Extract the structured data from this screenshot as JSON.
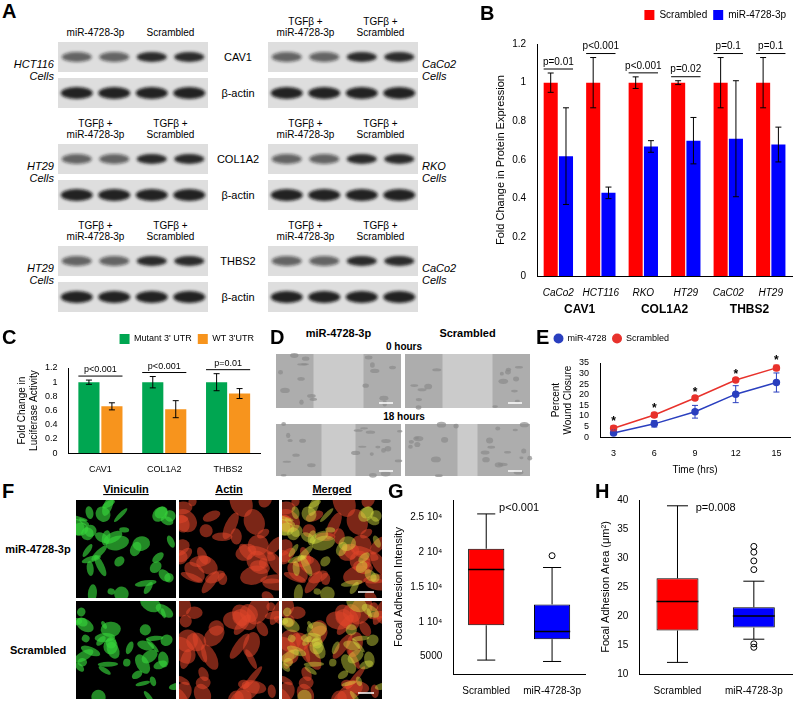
{
  "blots": {
    "panel": "A",
    "rows": [
      {
        "protein": "CAV1",
        "loading_control": "β-actin",
        "blots": [
          {
            "cell": "HCT116 Cells",
            "lanes": [
              "miR-4728-3p",
              "Scrambled"
            ]
          },
          {
            "cell": "CaCo2 Cells",
            "lanes": [
              "TGFβ + miR-4728-3p",
              "TGFβ + Scrambled"
            ]
          }
        ]
      },
      {
        "protein": "COL1A2",
        "loading_control": "β-actin",
        "blots": [
          {
            "cell": "HT29 Cells",
            "lanes": [
              "TGFβ + miR-4728-3p",
              "TGFβ + Scrambled"
            ]
          },
          {
            "cell": "RKO Cells",
            "lanes": [
              "TGFβ + miR-4728-3p",
              "TGFβ + Scrambled"
            ]
          }
        ]
      },
      {
        "protein": "THBS2",
        "loading_control": "β-actin",
        "blots": [
          {
            "cell": "HT29 Cells",
            "lanes": [
              "TGFβ + miR-4728-3p",
              "TGFβ + Scrambled"
            ]
          },
          {
            "cell": "CaCo2 Cells",
            "lanes": [
              "TGFβ + miR-4728-3p",
              "TGFβ + Scrambled"
            ]
          }
        ]
      }
    ]
  },
  "wound_images": {
    "panel": "D",
    "columns": [
      "miR-4728-3p",
      "Scrambled"
    ],
    "rows": [
      "0 hours",
      "18 hours"
    ]
  },
  "immunofluorescence": {
    "panel": "F",
    "columns": [
      "Viniculin",
      "Actin",
      "Merged"
    ],
    "rows": [
      "miR-4728-3p",
      "Scrambled"
    ]
  },
  "chart_data": [
    {
      "panel": "B",
      "type": "bar",
      "categories": [
        "CaCo2",
        "HCT116",
        "RKO",
        "HT29",
        "CaC02",
        "HT29"
      ],
      "groups": [
        "CAV1",
        "CAV1",
        "COL1A2",
        "COL1A2",
        "THBS2",
        "THBS2"
      ],
      "series": [
        {
          "name": "Scrambled",
          "color": "#ff0000",
          "values": [
            1,
            1,
            1,
            1,
            1,
            1
          ],
          "errors": [
            0.05,
            0.13,
            0.03,
            0.01,
            0.13,
            0.13
          ]
        },
        {
          "name": "miR-4728-3p",
          "color": "#0000ff",
          "values": [
            0.62,
            0.43,
            0.67,
            0.7,
            0.71,
            0.68
          ],
          "errors": [
            0.25,
            0.03,
            0.03,
            0.12,
            0.3,
            0.09
          ]
        }
      ],
      "annotations": [
        "p=0.01",
        "p<0.001",
        "p<0.001",
        "p=0.02",
        "p=0.1",
        "p=0.1"
      ],
      "y_label": "Fold Change in Protein Expression",
      "ylim": [
        0,
        1.2
      ],
      "yticks": [
        0,
        0.2,
        0.4,
        0.6,
        0.8,
        1,
        1.2
      ],
      "legend": "top-right",
      "grid": false
    },
    {
      "panel": "C",
      "type": "bar",
      "categories": [
        "CAV1",
        "COL1A2",
        "THBS2"
      ],
      "series": [
        {
          "name": "Mutant 3' UTR",
          "color": "#00a651",
          "values": [
            1,
            1,
            1
          ],
          "errors": [
            0.03,
            0.08,
            0.12
          ]
        },
        {
          "name": "WT 3'UTR",
          "color": "#f7941d",
          "values": [
            0.66,
            0.62,
            0.84
          ],
          "errors": [
            0.05,
            0.12,
            0.07
          ]
        }
      ],
      "annotations": [
        "p<0.001",
        "p<0.001",
        "p=0.01"
      ],
      "y_label": "Fold Change in Luciferase Activity",
      "ylim": [
        0,
        1.2
      ],
      "yticks": [
        0,
        0.2,
        0.4,
        0.6,
        0.8,
        1,
        1.2
      ],
      "legend": "top-right",
      "grid": false
    },
    {
      "panel": "E",
      "type": "line",
      "x": [
        3,
        6,
        9,
        12,
        15
      ],
      "series": [
        {
          "name": "miR-4728",
          "color": "#2a3fbf",
          "marker": "circle",
          "values": [
            2,
            6.3,
            12,
            20.3,
            25.8
          ],
          "errors": [
            0.8,
            1.5,
            3,
            4,
            4.5
          ]
        },
        {
          "name": "Scrambled",
          "color": "#e8322c",
          "marker": "circle",
          "values": [
            4.2,
            10.5,
            18.5,
            27,
            32.7
          ],
          "errors": [
            1.2,
            1.2,
            0.8,
            0.8,
            1.3
          ]
        }
      ],
      "annotations": [
        {
          "x": 3,
          "text": "*"
        },
        {
          "x": 6,
          "text": "*"
        },
        {
          "x": 9,
          "text": "*"
        },
        {
          "x": 12,
          "text": "*"
        },
        {
          "x": 15,
          "text": "*"
        }
      ],
      "x_label": "Time (hrs)",
      "y_label": "Percent Wound Closure",
      "xlim": [
        2,
        16
      ],
      "xticks": [
        3,
        6,
        9,
        12,
        15
      ],
      "ylim": [
        0,
        35
      ],
      "yticks": [
        0,
        5,
        10,
        15,
        20,
        25,
        30,
        35
      ],
      "legend": "top-left",
      "grid": false
    },
    {
      "panel": "G",
      "type": "box",
      "categories": [
        "Scrambled",
        "miR-4728-3p"
      ],
      "colors": [
        "#ff0000",
        "#0000ff"
      ],
      "boxes": [
        {
          "min": 4500,
          "q1": 9500,
          "median": 17500,
          "q3": 20500,
          "max": 25500,
          "outliers": []
        },
        {
          "min": 4300,
          "q1": 7500,
          "median": 8600,
          "q3": 12500,
          "max": 17800,
          "outliers": [
            19500
          ]
        }
      ],
      "annotation": "p<0.001",
      "y_label": "Focal Adhesion Intensity",
      "ylim": [
        2500,
        27500
      ],
      "yticks": [
        5000,
        {
          "value": 10000,
          "label": "1 10⁴"
        },
        {
          "value": 15000,
          "label": "1.5 10⁴"
        },
        {
          "value": 20000,
          "label": "2 10⁴"
        },
        {
          "value": 25000,
          "label": "2.5 10⁴"
        }
      ],
      "grid": false
    },
    {
      "panel": "H",
      "type": "box",
      "categories": [
        "Scrambled",
        "miR-4728-3p"
      ],
      "colors": [
        "#ff0000",
        "#0000ff"
      ],
      "boxes": [
        {
          "min": 12,
          "q1": 17.5,
          "median": 22.5,
          "q3": 26.5,
          "max": 39,
          "outliers": []
        },
        {
          "min": 16,
          "q1": 18,
          "median": 20,
          "q3": 21.5,
          "max": 26,
          "outliers": [
            14.6,
            15.2,
            28,
            29.5,
            31,
            32
          ]
        }
      ],
      "annotation": "p=0.008",
      "y_label": "Focal Adhesion Area (μm²)",
      "ylim": [
        10,
        40
      ],
      "yticks": [
        10,
        15,
        20,
        25,
        30,
        35,
        40
      ],
      "grid": false
    }
  ]
}
